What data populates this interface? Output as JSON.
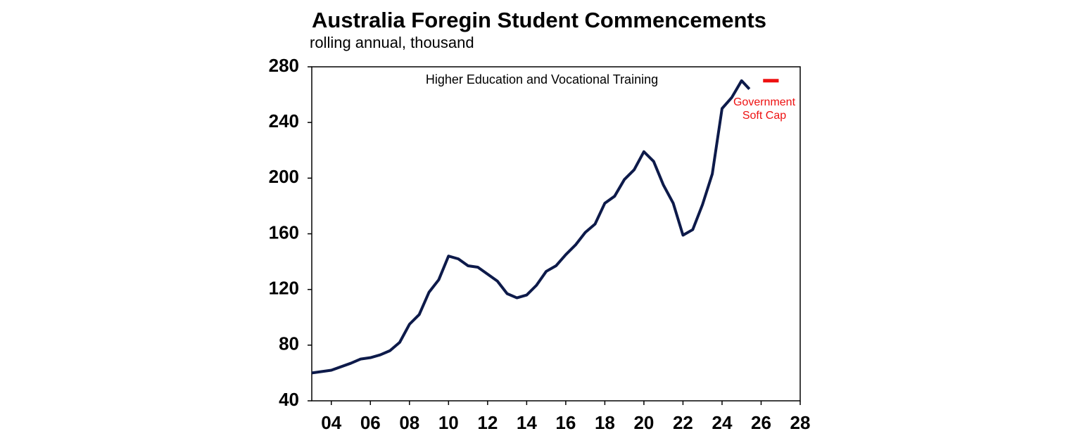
{
  "chart_data": {
    "type": "line",
    "title": "Australia Foregin Student Commencements",
    "subtitle": "rolling annual, thousand",
    "xlim": [
      2003,
      2028
    ],
    "xticks": [
      {
        "value": 2004,
        "label": "04"
      },
      {
        "value": 2006,
        "label": "06"
      },
      {
        "value": 2008,
        "label": "08"
      },
      {
        "value": 2010,
        "label": "10"
      },
      {
        "value": 2012,
        "label": "12"
      },
      {
        "value": 2014,
        "label": "14"
      },
      {
        "value": 2016,
        "label": "16"
      },
      {
        "value": 2018,
        "label": "18"
      },
      {
        "value": 2020,
        "label": "20"
      },
      {
        "value": 2022,
        "label": "22"
      },
      {
        "value": 2024,
        "label": "24"
      },
      {
        "value": 2026,
        "label": "26"
      },
      {
        "value": 2028,
        "label": "28"
      }
    ],
    "ylim": [
      40,
      280
    ],
    "yticks": [
      40,
      80,
      120,
      160,
      200,
      240,
      280
    ],
    "grid": false,
    "series": [
      {
        "name": "Higher Education and Vocational Training",
        "color": "#0d1a4a",
        "x": [
          2003.0,
          2004.0,
          2005.0,
          2005.5,
          2006.0,
          2006.5,
          2007.0,
          2007.5,
          2008.0,
          2008.5,
          2009.0,
          2009.5,
          2010.0,
          2010.5,
          2011.0,
          2011.5,
          2012.0,
          2012.5,
          2013.0,
          2013.5,
          2014.0,
          2014.5,
          2015.0,
          2015.5,
          2016.0,
          2016.5,
          2017.0,
          2017.5,
          2018.0,
          2018.5,
          2019.0,
          2019.5,
          2020.0,
          2020.5,
          2021.0,
          2021.5,
          2022.0,
          2022.5,
          2023.0,
          2023.5,
          2024.0,
          2024.5,
          2025.0,
          2025.4
        ],
        "values": [
          60,
          62,
          67,
          70,
          71,
          73,
          76,
          82,
          95,
          102,
          118,
          127,
          144,
          142,
          137,
          136,
          131,
          126,
          117,
          114,
          116,
          123,
          133,
          137,
          145,
          152,
          161,
          167,
          182,
          187,
          199,
          206,
          219,
          212,
          195,
          182,
          159,
          163,
          181,
          203,
          250,
          258,
          270,
          264
        ]
      },
      {
        "name": "Government Soft Cap",
        "color": "#ee1111",
        "x": [
          2026.1,
          2026.9
        ],
        "values": [
          270,
          270
        ]
      }
    ]
  }
}
